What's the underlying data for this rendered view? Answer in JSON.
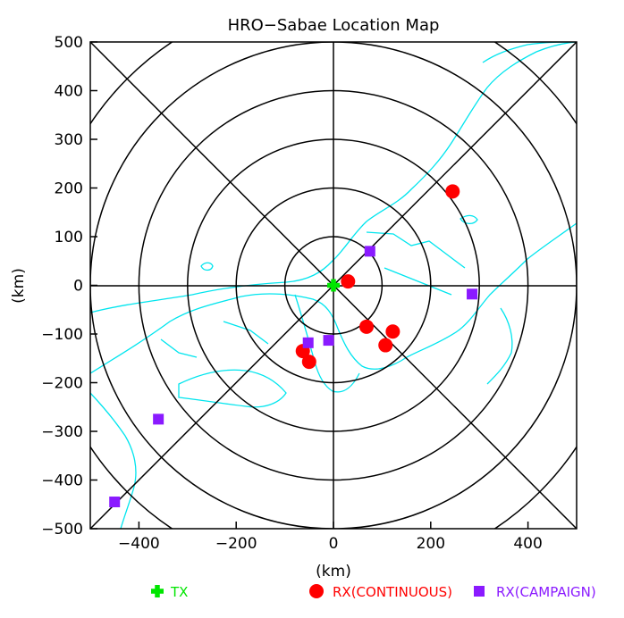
{
  "chart_data": {
    "type": "scatter",
    "title": "HRO−Sabae Location Map",
    "xlabel": "(km)",
    "ylabel": "(km)",
    "xlim": [
      -500,
      500
    ],
    "ylim": [
      -500,
      500
    ],
    "xticks": [
      -400,
      -200,
      0,
      200,
      400
    ],
    "yticks": [
      500,
      400,
      300,
      200,
      100,
      0,
      -100,
      -200,
      -300,
      -400,
      -500
    ],
    "xtick_labels": [
      "−400",
      "−200",
      "0",
      "200",
      "400"
    ],
    "ytick_labels": [
      "500",
      "400",
      "300",
      "200",
      "100",
      "0",
      "−100",
      "−200",
      "−300",
      "−400",
      "−500"
    ],
    "range_rings_km": [
      100,
      200,
      300,
      400,
      500,
      600
    ],
    "coastline_color": "#00e5ee",
    "series": [
      {
        "name": "TX",
        "marker": "plus",
        "color": "#00e600",
        "points": [
          {
            "x": 0,
            "y": 0
          }
        ]
      },
      {
        "name": "RX(CONTINUOUS)",
        "marker": "circle",
        "color": "#ff0000",
        "points": [
          {
            "x": 245,
            "y": 193
          },
          {
            "x": 30,
            "y": 8
          },
          {
            "x": 68,
            "y": -85
          },
          {
            "x": 122,
            "y": -95
          },
          {
            "x": 107,
            "y": -123
          },
          {
            "x": -63,
            "y": -135
          },
          {
            "x": -50,
            "y": -157
          }
        ]
      },
      {
        "name": "RX(CAMPAIGN)",
        "marker": "square",
        "color": "#8a1aff",
        "points": [
          {
            "x": 75,
            "y": 70
          },
          {
            "x": 285,
            "y": -18
          },
          {
            "x": -52,
            "y": -118
          },
          {
            "x": -10,
            "y": -113
          },
          {
            "x": -360,
            "y": -275
          },
          {
            "x": -450,
            "y": -445
          }
        ]
      }
    ]
  },
  "legend": {
    "tx": "TX",
    "rx_continuous": "RX(CONTINUOUS)",
    "rx_campaign": "RX(CAMPAIGN)"
  }
}
